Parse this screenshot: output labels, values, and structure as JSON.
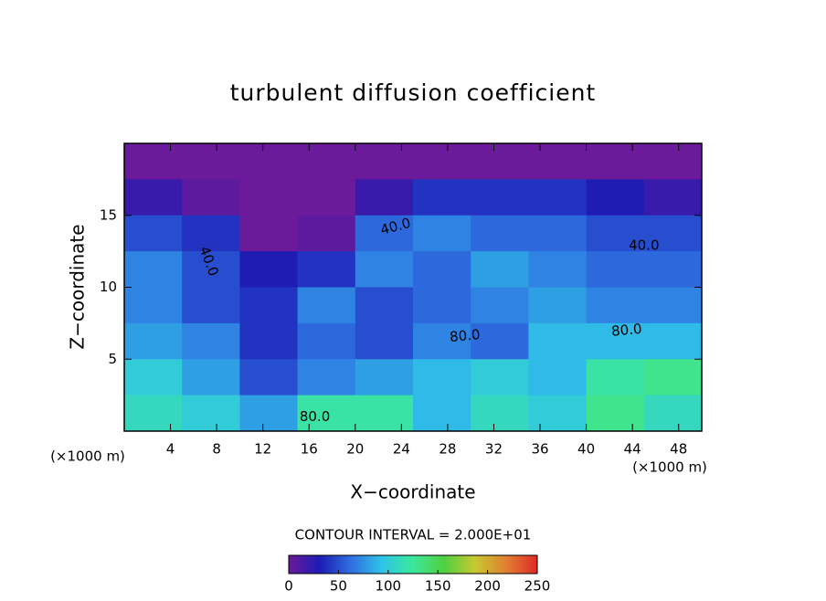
{
  "chart_data": {
    "type": "heatmap",
    "title": "turbulent diffusion coefficient",
    "x_label": "X−coordinate",
    "y_label": "Z−coordinate",
    "x_unit": "(×1000 m)",
    "y_unit": "(×1000 m)",
    "contour_note": "CONTOUR INTERVAL = 2.000E+01",
    "xlim": [
      0,
      50
    ],
    "xticks": [
      4,
      8,
      12,
      16,
      20,
      24,
      28,
      32,
      36,
      40,
      44,
      48
    ],
    "ylim": [
      0,
      20
    ],
    "yticks": [
      5,
      10,
      15
    ],
    "clim": [
      0,
      250
    ],
    "cticks": [
      0,
      50,
      100,
      150,
      200,
      250
    ],
    "colormap": [
      "#6a1a9a",
      "#1c1cb4",
      "#2f6fe0",
      "#2fc4e8",
      "#3ce89a",
      "#50d040",
      "#c8c830",
      "#e08030",
      "#e02828"
    ],
    "z": [
      [
        0,
        0,
        0,
        0,
        0,
        0,
        0,
        0,
        0,
        0
      ],
      [
        20,
        5,
        0,
        0,
        20,
        40,
        40,
        40,
        30,
        20
      ],
      [
        50,
        40,
        0,
        5,
        60,
        70,
        60,
        60,
        50,
        50
      ],
      [
        70,
        50,
        30,
        40,
        70,
        60,
        80,
        70,
        60,
        60
      ],
      [
        70,
        50,
        40,
        70,
        50,
        60,
        70,
        80,
        70,
        70
      ],
      [
        80,
        70,
        40,
        60,
        50,
        70,
        60,
        90,
        90,
        90
      ],
      [
        100,
        80,
        50,
        70,
        80,
        90,
        100,
        90,
        120,
        130
      ],
      [
        110,
        100,
        80,
        120,
        120,
        90,
        110,
        100,
        130,
        110
      ]
    ],
    "annotations": [
      "40.0",
      "40.0",
      "40.0",
      "80.0",
      "80.0",
      "80.0"
    ]
  }
}
